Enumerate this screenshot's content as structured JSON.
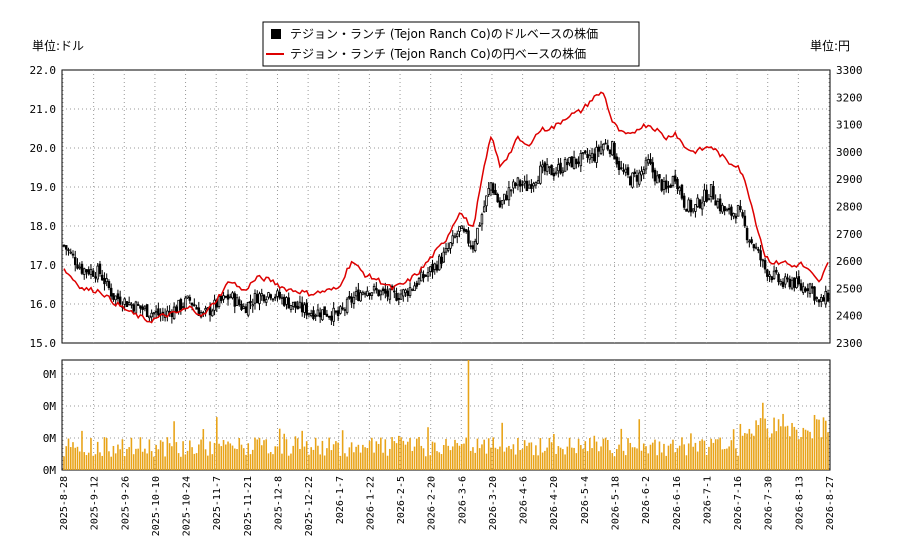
{
  "legend": {
    "usd_label": "テジョン・ランチ (Tejon Ranch Co)のドルベースの株価",
    "jpy_label": "テジョン・ランチ (Tejon Ranch Co)の円ベースの株価"
  },
  "axis": {
    "left_unit": "単位:ドル",
    "right_unit": "単位:円"
  },
  "colors": {
    "candle": "#000000",
    "jpy_line": "#dd0000",
    "volume": "#e8a317",
    "grid": "#999999"
  },
  "chart_data": {
    "type": "candlestick+line+bar",
    "left_axis": {
      "ylim": [
        15.0,
        22.0
      ],
      "ticks": [
        "15.0",
        "16.0",
        "17.0",
        "18.0",
        "19.0",
        "20.0",
        "21.0",
        "22.0"
      ]
    },
    "right_axis": {
      "ylim": [
        2300,
        3300
      ],
      "ticks": [
        "2300",
        "2400",
        "2500",
        "2600",
        "2700",
        "2800",
        "2900",
        "3000",
        "3100",
        "3200",
        "3300"
      ]
    },
    "volume_axis": {
      "ticks": [
        "0M",
        "0M",
        "0M",
        "0M"
      ]
    },
    "x_ticks": [
      "2025-8-28",
      "2025-9-12",
      "2025-9-26",
      "2025-10-10",
      "2025-10-24",
      "2025-11-7",
      "2025-11-21",
      "2025-12-8",
      "2025-12-22",
      "2026-1-7",
      "2026-1-22",
      "2026-2-5",
      "2026-2-20",
      "2026-3-6",
      "2026-3-20",
      "2026-4-6",
      "2026-4-20",
      "2026-5-4",
      "2026-5-18",
      "2026-6-2",
      "2026-6-16",
      "2026-7-1",
      "2026-7-16",
      "2026-7-30",
      "2026-8-13",
      "2026-8-27"
    ],
    "usd_close_keypoints": [
      [
        0,
        17.5
      ],
      [
        8,
        16.9
      ],
      [
        16,
        16.8
      ],
      [
        22,
        16.2
      ],
      [
        30,
        16.0
      ],
      [
        38,
        15.8
      ],
      [
        44,
        15.7
      ],
      [
        50,
        15.9
      ],
      [
        56,
        16.1
      ],
      [
        62,
        15.7
      ],
      [
        68,
        16.0
      ],
      [
        74,
        16.2
      ],
      [
        80,
        15.9
      ],
      [
        86,
        16.2
      ],
      [
        92,
        16.3
      ],
      [
        98,
        16.1
      ],
      [
        104,
        15.9
      ],
      [
        110,
        15.8
      ],
      [
        116,
        15.8
      ],
      [
        122,
        15.7
      ],
      [
        128,
        16.1
      ],
      [
        134,
        16.4
      ],
      [
        140,
        16.3
      ],
      [
        146,
        16.2
      ],
      [
        152,
        16.3
      ],
      [
        158,
        16.6
      ],
      [
        164,
        16.9
      ],
      [
        170,
        17.3
      ],
      [
        176,
        17.9
      ],
      [
        182,
        17.5
      ],
      [
        186,
        18.3
      ],
      [
        190,
        19.1
      ],
      [
        194,
        18.5
      ],
      [
        198,
        18.9
      ],
      [
        202,
        19.1
      ],
      [
        206,
        19.0
      ],
      [
        212,
        19.4
      ],
      [
        218,
        19.4
      ],
      [
        224,
        19.6
      ],
      [
        230,
        19.7
      ],
      [
        236,
        19.8
      ],
      [
        240,
        20.1
      ],
      [
        244,
        20.0
      ],
      [
        248,
        19.4
      ],
      [
        252,
        19.2
      ],
      [
        256,
        19.3
      ],
      [
        260,
        19.6
      ],
      [
        264,
        19.2
      ],
      [
        268,
        18.9
      ],
      [
        272,
        19.3
      ],
      [
        276,
        18.6
      ],
      [
        280,
        18.4
      ],
      [
        284,
        18.7
      ],
      [
        288,
        18.9
      ],
      [
        292,
        18.5
      ],
      [
        296,
        18.3
      ],
      [
        300,
        18.4
      ],
      [
        304,
        17.8
      ],
      [
        308,
        17.4
      ],
      [
        312,
        16.9
      ],
      [
        316,
        16.7
      ],
      [
        320,
        16.5
      ],
      [
        324,
        16.6
      ],
      [
        328,
        16.4
      ],
      [
        332,
        16.5
      ],
      [
        336,
        16.0
      ],
      [
        340,
        16.2
      ]
    ],
    "jpy_close_keypoints": [
      [
        0,
        2570
      ],
      [
        8,
        2500
      ],
      [
        16,
        2490
      ],
      [
        22,
        2450
      ],
      [
        30,
        2410
      ],
      [
        38,
        2380
      ],
      [
        44,
        2400
      ],
      [
        50,
        2410
      ],
      [
        56,
        2430
      ],
      [
        62,
        2400
      ],
      [
        68,
        2460
      ],
      [
        74,
        2530
      ],
      [
        80,
        2490
      ],
      [
        86,
        2540
      ],
      [
        92,
        2530
      ],
      [
        98,
        2500
      ],
      [
        104,
        2490
      ],
      [
        110,
        2480
      ],
      [
        116,
        2490
      ],
      [
        122,
        2500
      ],
      [
        128,
        2600
      ],
      [
        134,
        2550
      ],
      [
        140,
        2530
      ],
      [
        146,
        2500
      ],
      [
        152,
        2520
      ],
      [
        158,
        2560
      ],
      [
        164,
        2620
      ],
      [
        170,
        2680
      ],
      [
        176,
        2780
      ],
      [
        182,
        2720
      ],
      [
        186,
        2900
      ],
      [
        190,
        3060
      ],
      [
        194,
        2950
      ],
      [
        198,
        2990
      ],
      [
        202,
        3050
      ],
      [
        206,
        3020
      ],
      [
        212,
        3080
      ],
      [
        218,
        3090
      ],
      [
        224,
        3130
      ],
      [
        230,
        3150
      ],
      [
        236,
        3200
      ],
      [
        240,
        3220
      ],
      [
        244,
        3110
      ],
      [
        248,
        3070
      ],
      [
        252,
        3060
      ],
      [
        256,
        3090
      ],
      [
        260,
        3100
      ],
      [
        264,
        3080
      ],
      [
        268,
        3050
      ],
      [
        272,
        3070
      ],
      [
        276,
        3020
      ],
      [
        280,
        3000
      ],
      [
        284,
        3010
      ],
      [
        288,
        3020
      ],
      [
        292,
        2990
      ],
      [
        296,
        2960
      ],
      [
        300,
        2950
      ],
      [
        304,
        2870
      ],
      [
        308,
        2740
      ],
      [
        312,
        2620
      ],
      [
        316,
        2590
      ],
      [
        320,
        2600
      ],
      [
        324,
        2580
      ],
      [
        328,
        2590
      ],
      [
        332,
        2560
      ],
      [
        336,
        2520
      ],
      [
        340,
        2590
      ]
    ],
    "n_days": 341
  }
}
